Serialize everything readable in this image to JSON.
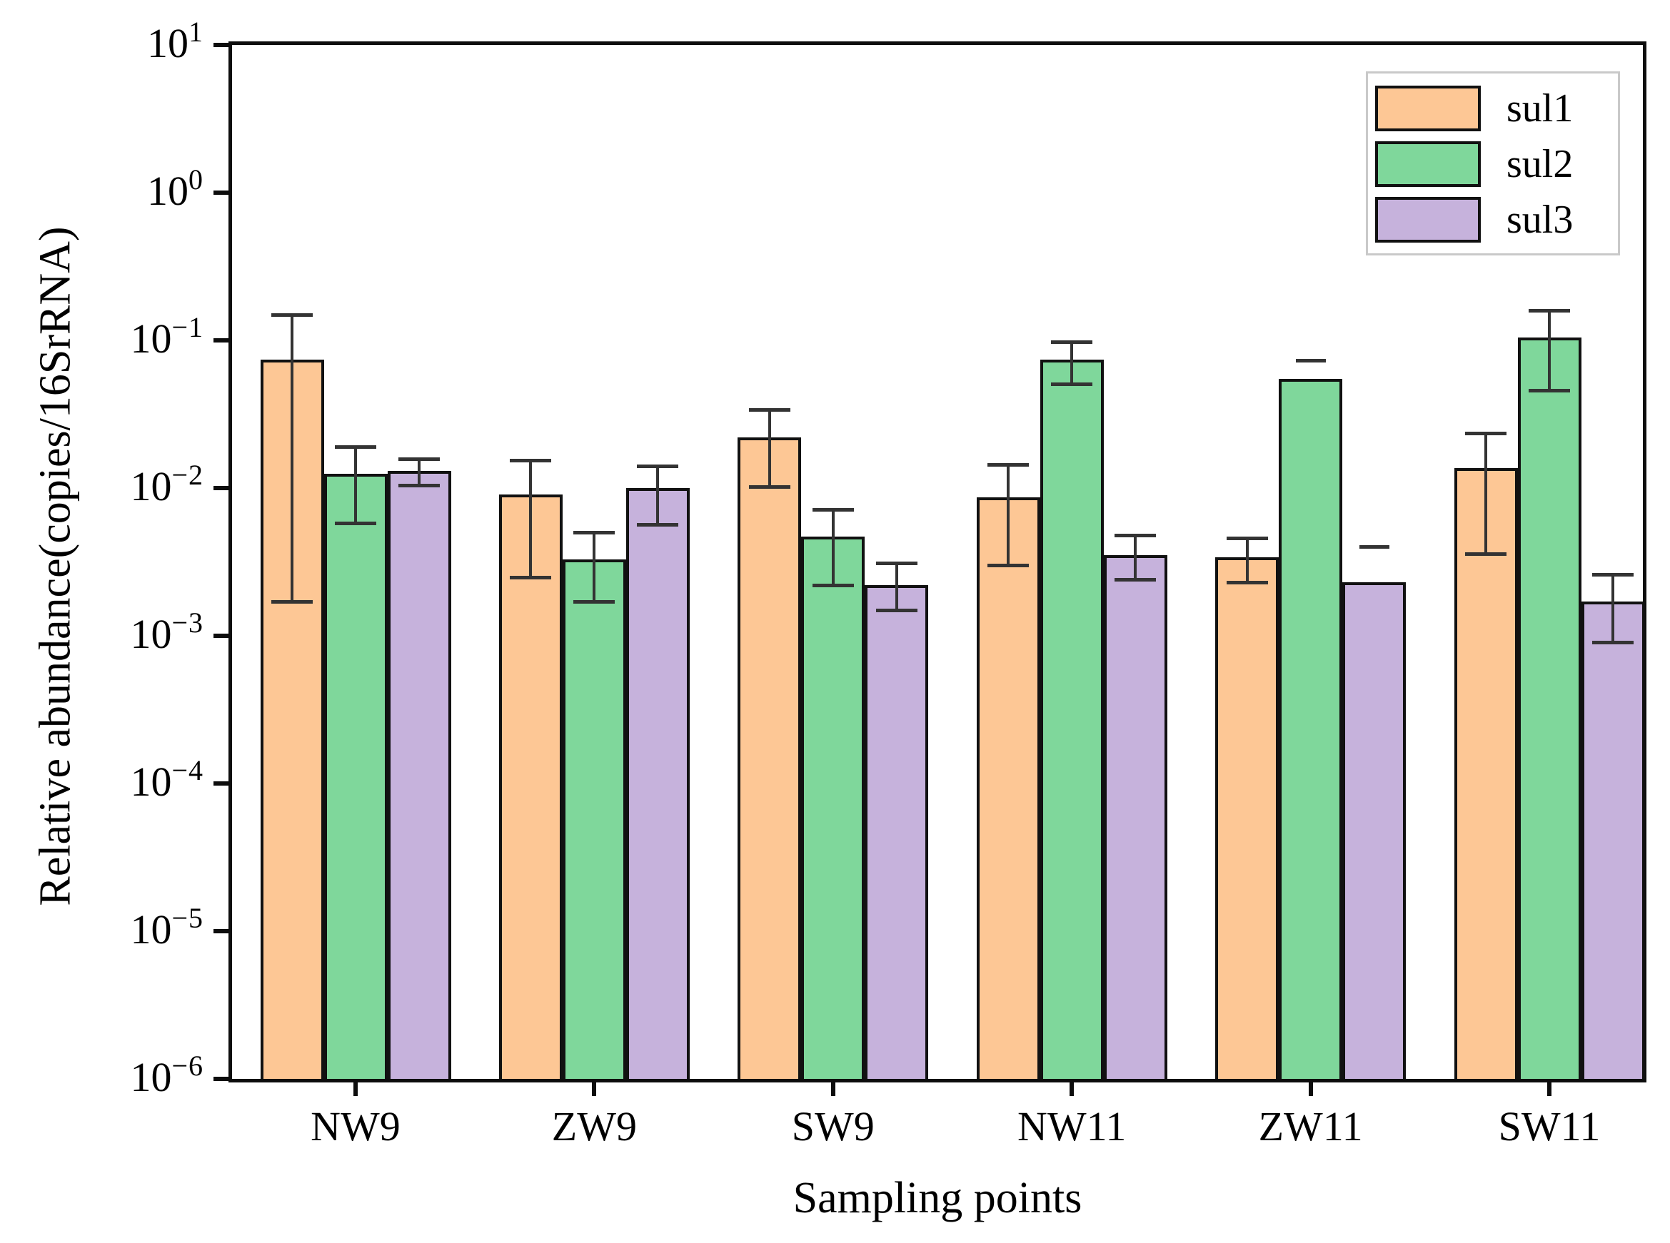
{
  "chart_data": {
    "type": "bar",
    "title": "",
    "xlabel": "Sampling points",
    "ylabel": "Relative abundance(copies/16SrRNA)",
    "yscale": "log",
    "ylim": [
      1e-06,
      10
    ],
    "y_tick_exponents": [
      1,
      0,
      -1,
      -2,
      -3,
      -4,
      -5,
      -6
    ],
    "categories": [
      "NW9",
      "ZW9",
      "SW9",
      "NW11",
      "ZW11",
      "SW11"
    ],
    "grid": false,
    "legend_position": "top-right",
    "series": [
      {
        "name": "sul1",
        "color": "#FDC795",
        "values": [
          0.074,
          0.009,
          0.022,
          0.0087,
          0.0034,
          0.0137
        ],
        "err_hi": [
          0.15,
          0.0155,
          0.034,
          0.0145,
          0.0046,
          0.0235
        ],
        "err_lo": [
          0.0017,
          0.0025,
          0.0102,
          0.003,
          0.0023,
          0.0036
        ],
        "err_line": [
          true,
          true,
          true,
          true,
          true,
          true
        ]
      },
      {
        "name": "sul2",
        "color": "#7FD79B",
        "values": [
          0.0125,
          0.0033,
          0.0047,
          0.074,
          0.055,
          0.104
        ],
        "err_hi": [
          0.019,
          0.005,
          0.0072,
          0.098,
          0.073,
          0.16
        ],
        "err_lo": [
          0.0058,
          0.0017,
          0.0022,
          0.051,
          null,
          0.046
        ],
        "err_line": [
          true,
          true,
          true,
          true,
          false,
          true
        ]
      },
      {
        "name": "sul3",
        "color": "#C6B2DC",
        "values": [
          0.013,
          0.01,
          0.0022,
          0.0035,
          0.0023,
          0.0017
        ],
        "err_hi": [
          0.0157,
          0.0141,
          0.0031,
          0.0048,
          0.004,
          0.0026
        ],
        "err_lo": [
          0.0104,
          0.0057,
          0.0015,
          0.0024,
          null,
          0.0009
        ],
        "err_line": [
          true,
          true,
          true,
          true,
          false,
          true
        ]
      }
    ]
  }
}
